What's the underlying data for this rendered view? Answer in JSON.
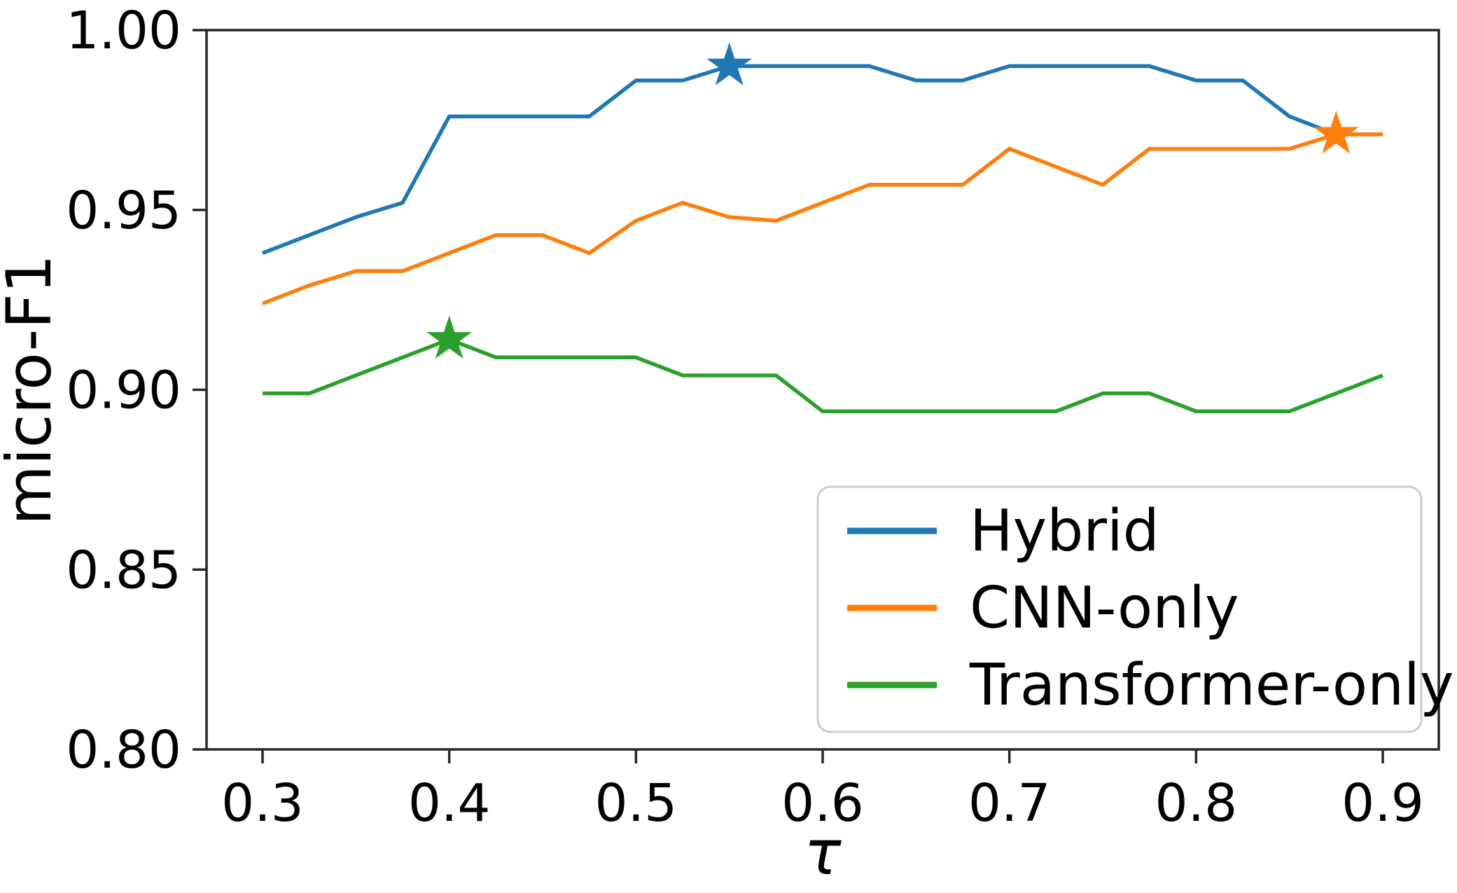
{
  "chart_data": {
    "type": "line",
    "title": "",
    "xlabel": "τ",
    "ylabel": "micro-F1",
    "xlim": [
      0.27,
      0.93
    ],
    "ylim": [
      0.8,
      1.0
    ],
    "grid": false,
    "x_tick_labels": [
      "0.3",
      "0.4",
      "0.5",
      "0.6",
      "0.7",
      "0.8",
      "0.9"
    ],
    "x_tick_values": [
      0.3,
      0.4,
      0.5,
      0.6,
      0.7,
      0.8,
      0.9
    ],
    "y_tick_labels": [
      "0.80",
      "0.85",
      "0.90",
      "0.95",
      "1.00"
    ],
    "y_tick_values": [
      0.8,
      0.85,
      0.9,
      0.95,
      1.0
    ],
    "x": [
      0.3,
      0.325,
      0.35,
      0.375,
      0.4,
      0.425,
      0.45,
      0.475,
      0.5,
      0.525,
      0.55,
      0.575,
      0.6,
      0.625,
      0.65,
      0.675,
      0.7,
      0.725,
      0.75,
      0.775,
      0.8,
      0.825,
      0.85,
      0.875,
      0.9
    ],
    "series": [
      {
        "name": "Hybrid",
        "color": "#1f77b4",
        "values": [
          0.938,
          0.943,
          0.948,
          0.952,
          0.976,
          0.976,
          0.976,
          0.976,
          0.986,
          0.986,
          0.99,
          0.99,
          0.99,
          0.99,
          0.986,
          0.986,
          0.99,
          0.99,
          0.99,
          0.99,
          0.986,
          0.986,
          0.976,
          0.971,
          0.971
        ],
        "best_point": {
          "x": 0.55,
          "y": 0.99,
          "marker": "star"
        }
      },
      {
        "name": "CNN-only",
        "color": "#ff7f0e",
        "values": [
          0.924,
          0.929,
          0.933,
          0.933,
          0.938,
          0.943,
          0.943,
          0.938,
          0.947,
          0.952,
          0.948,
          0.947,
          0.952,
          0.957,
          0.957,
          0.957,
          0.967,
          0.962,
          0.957,
          0.967,
          0.967,
          0.967,
          0.967,
          0.971,
          0.971
        ],
        "best_point": {
          "x": 0.875,
          "y": 0.971,
          "marker": "star"
        }
      },
      {
        "name": "Transformer-only",
        "color": "#2ca02c",
        "values": [
          0.899,
          0.899,
          0.904,
          0.909,
          0.914,
          0.909,
          0.909,
          0.909,
          0.909,
          0.904,
          0.904,
          0.904,
          0.894,
          0.894,
          0.894,
          0.894,
          0.894,
          0.894,
          0.899,
          0.899,
          0.894,
          0.894,
          0.894,
          0.899,
          0.904
        ],
        "best_point": {
          "x": 0.4,
          "y": 0.914,
          "marker": "star"
        }
      }
    ],
    "legend": {
      "position": "lower right",
      "entries": [
        "Hybrid",
        "CNN-only",
        "Transformer-only"
      ]
    },
    "spine_color": "#262626"
  }
}
